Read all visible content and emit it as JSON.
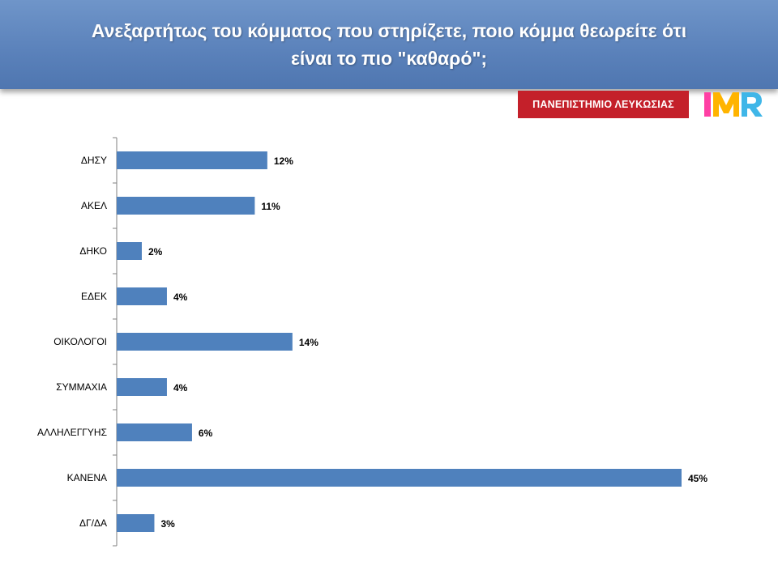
{
  "header": {
    "title_line1": "Ανεξαρτήτως του κόμματος που στηρίζετε, ποιο κόμμα θεωρείτε ότι",
    "title_line2": "είναι το πιο \"καθαρό\";"
  },
  "logos": {
    "university": "ΠΑΝΕΠΙΣΤΗΜΙΟ ΛΕΥΚΩΣΙΑΣ",
    "imr": "IMR"
  },
  "chart_data": {
    "type": "bar",
    "orientation": "horizontal",
    "categories": [
      "ΔΗΣΥ",
      "ΑΚΕΛ",
      "ΔΗΚΟ",
      "ΕΔΕΚ",
      "ΟΙΚΟΛΟΓΟΙ",
      "ΣΥΜΜΑΧΙΑ",
      "ΑΛΛΗΛΕΓΓΥΗΣ",
      "ΚΑΝΕΝΑ",
      "ΔΓ/ΔΑ"
    ],
    "values": [
      12,
      11,
      2,
      4,
      14,
      4,
      6,
      45,
      3
    ],
    "value_labels": [
      "12%",
      "11%",
      "2%",
      "4%",
      "14%",
      "4%",
      "6%",
      "45%",
      "3%"
    ],
    "bar_color": "#4f81bd",
    "grid": false,
    "legend": "none",
    "xlim": [
      0,
      45
    ]
  }
}
